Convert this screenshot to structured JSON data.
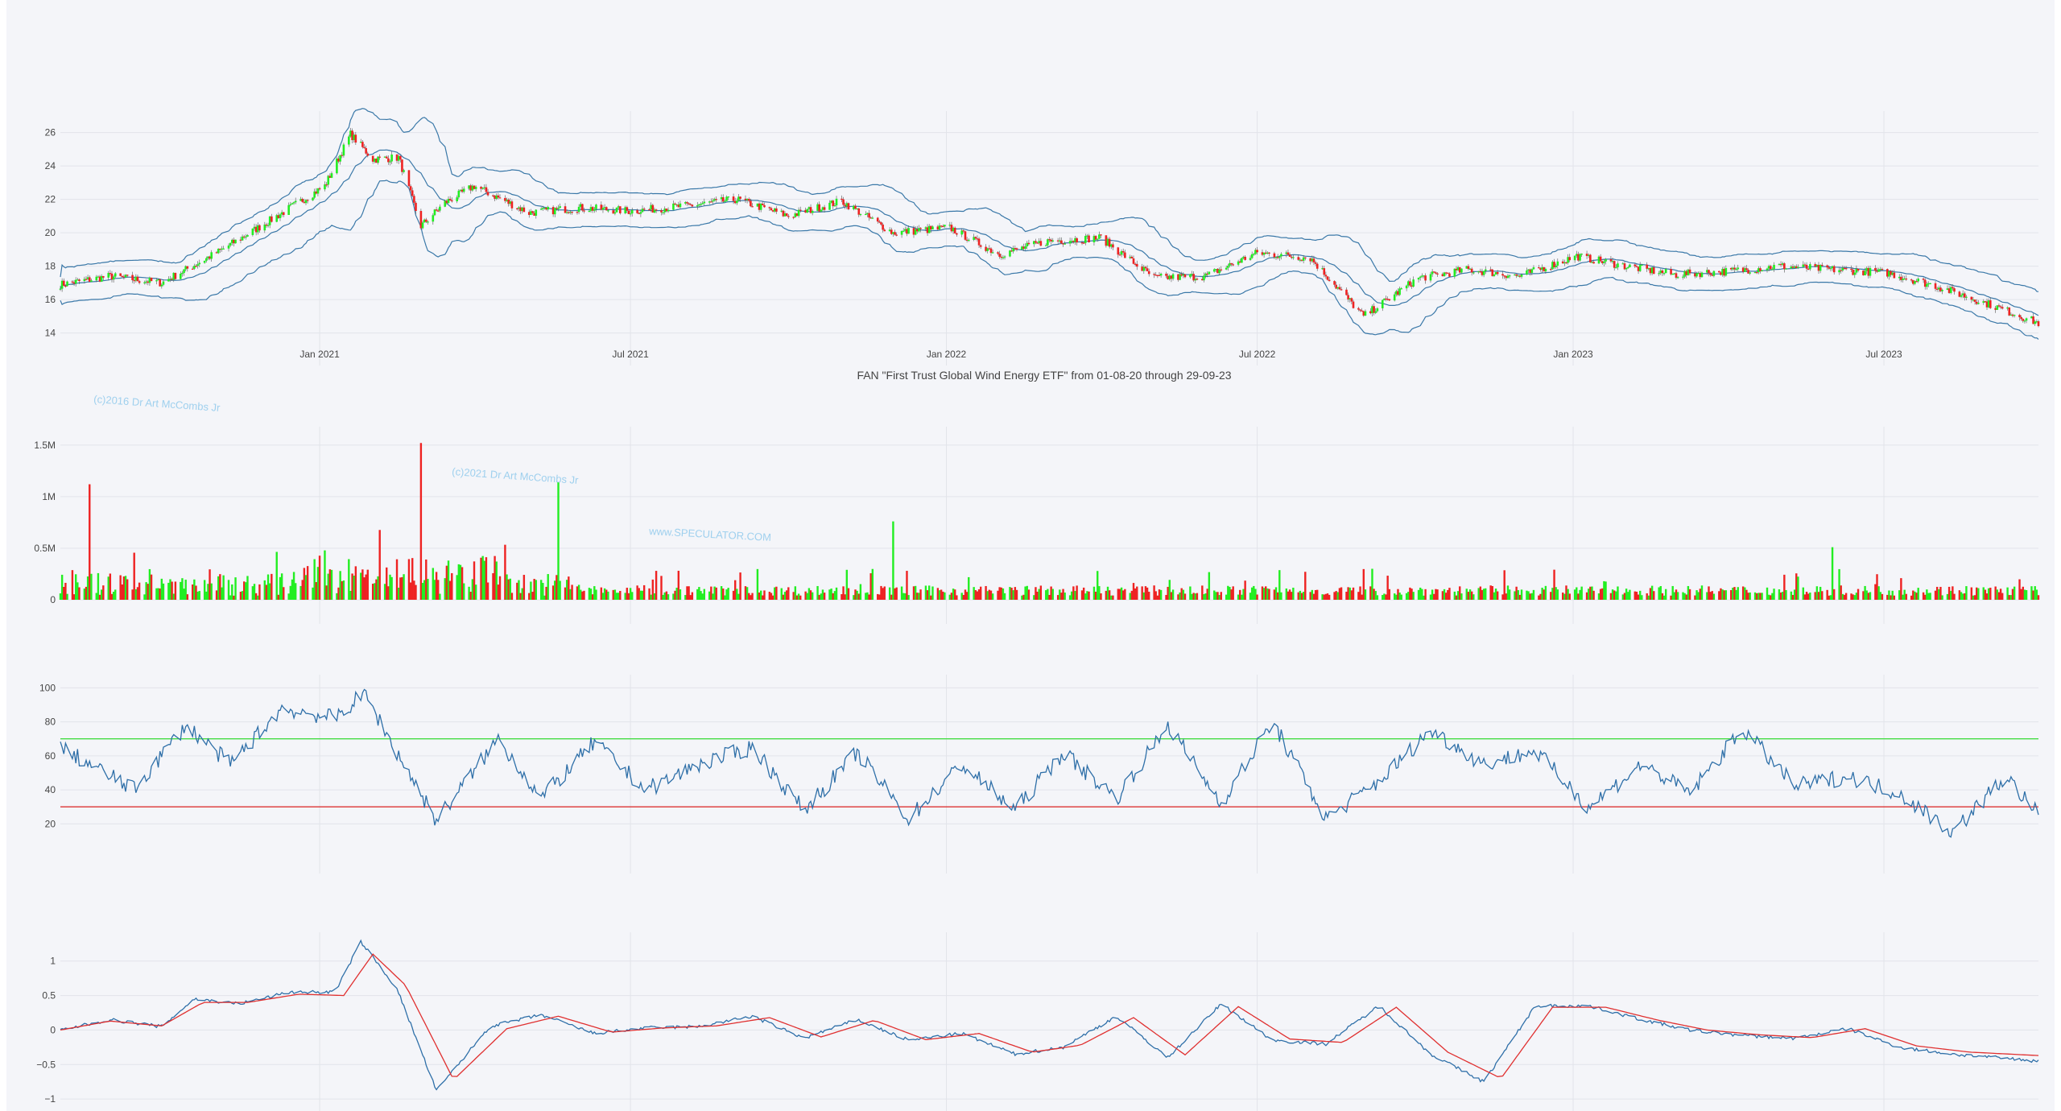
{
  "chart_title": "FAN \"First Trust Global Wind Energy ETF\" from 01-08-20 through 29-09-23",
  "watermarks": [
    "(c)2016 Dr Art McCombs Jr",
    "(c)2021 Dr Art McCombs Jr",
    "www.SPECULATOR.COM"
  ],
  "colors": {
    "up": "#22ee22",
    "down": "#ee2222",
    "band": "#3a78a8",
    "rsi": "#2e6fa8",
    "signal": "#e03030",
    "overbought": "#44dd44",
    "oversold": "#dd3333",
    "grid": "#e2e4ea",
    "background": "#f4f5f9"
  },
  "chart_data": [
    {
      "type": "candlestick",
      "name": "price",
      "x_tick_labels": [
        "Jan 2021",
        "Jul 2021",
        "Jan 2022",
        "Jul 2022",
        "Jan 2023",
        "Jul 2023"
      ],
      "y_ticks": [
        14,
        16,
        18,
        20,
        22,
        24,
        26
      ],
      "ylim": [
        13.5,
        26.8
      ],
      "overlays": [
        "bollinger upper",
        "bollinger middle",
        "bollinger lower"
      ],
      "series": [
        {
          "name": "close",
          "x": [
            "2020-08-03",
            "2020-09-01",
            "2020-10-01",
            "2020-11-02",
            "2020-12-01",
            "2021-01-04",
            "2021-01-19",
            "2021-02-01",
            "2021-02-16",
            "2021-03-01",
            "2021-03-15",
            "2021-04-01",
            "2021-05-03",
            "2021-06-01",
            "2021-07-01",
            "2021-08-02",
            "2021-09-01",
            "2021-10-01",
            "2021-11-01",
            "2021-12-01",
            "2022-01-03",
            "2022-02-01",
            "2022-03-01",
            "2022-04-01",
            "2022-05-02",
            "2022-06-01",
            "2022-07-01",
            "2022-08-01",
            "2022-09-01",
            "2022-10-03",
            "2022-11-01",
            "2022-12-01",
            "2023-01-03",
            "2023-02-01",
            "2023-03-01",
            "2023-04-03",
            "2023-05-01",
            "2023-06-01",
            "2023-07-03",
            "2023-08-01",
            "2023-09-01",
            "2023-09-29"
          ],
          "values": [
            16.9,
            17.4,
            17.0,
            18.8,
            20.6,
            22.8,
            25.9,
            24.4,
            24.5,
            20.4,
            21.8,
            22.8,
            21.2,
            21.5,
            21.3,
            21.6,
            22.0,
            21.0,
            21.9,
            20.0,
            20.3,
            18.7,
            19.5,
            19.7,
            17.3,
            17.4,
            18.8,
            18.5,
            15.0,
            17.3,
            17.8,
            17.4,
            18.6,
            18.0,
            17.5,
            17.7,
            18.0,
            17.8,
            17.6,
            16.8,
            15.7,
            14.6
          ]
        }
      ]
    },
    {
      "type": "bar",
      "name": "volume",
      "y_ticks": [
        "0",
        "0.5M",
        "1M",
        "1.5M"
      ],
      "ylim": [
        0,
        1600000
      ],
      "spikes": [
        {
          "date": "2020-08-20",
          "value": 1120000
        },
        {
          "date": "2021-03-01",
          "value": 1520000
        },
        {
          "date": "2021-05-20",
          "value": 1140000
        },
        {
          "date": "2021-12-01",
          "value": 760000
        },
        {
          "date": "2023-06-01",
          "value": 510000
        }
      ]
    },
    {
      "type": "line",
      "name": "rsi",
      "y_ticks": [
        20,
        40,
        60,
        80,
        100
      ],
      "ylim": [
        5,
        103
      ],
      "reference_lines": [
        70,
        30
      ],
      "series": [
        {
          "name": "rsi",
          "x": [
            "2020-08-03",
            "2020-09-15",
            "2020-10-15",
            "2020-11-10",
            "2020-12-10",
            "2021-01-10",
            "2021-01-27",
            "2021-02-15",
            "2021-03-10",
            "2021-04-15",
            "2021-05-10",
            "2021-06-10",
            "2021-07-10",
            "2021-08-10",
            "2021-09-10",
            "2021-10-10",
            "2021-11-10",
            "2021-12-10",
            "2022-01-10",
            "2022-02-10",
            "2022-03-10",
            "2022-04-10",
            "2022-05-10",
            "2022-06-10",
            "2022-07-10",
            "2022-08-10",
            "2022-09-10",
            "2022-10-10",
            "2022-11-10",
            "2022-12-10",
            "2023-01-10",
            "2023-02-10",
            "2023-03-10",
            "2023-04-10",
            "2023-05-10",
            "2023-06-10",
            "2023-07-10",
            "2023-08-10",
            "2023-09-10",
            "2023-09-29"
          ],
          "values": [
            65,
            40,
            78,
            55,
            88,
            82,
            97,
            62,
            22,
            70,
            35,
            68,
            40,
            55,
            65,
            28,
            62,
            23,
            55,
            28,
            62,
            35,
            78,
            32,
            80,
            23,
            45,
            75,
            55,
            63,
            30,
            55,
            38,
            76,
            42,
            48,
            38,
            15,
            48,
            25
          ]
        }
      ]
    },
    {
      "type": "line",
      "name": "oscillator",
      "y_ticks": [
        "−1",
        "−0.5",
        "0",
        "0.5",
        "1"
      ],
      "ylim": [
        -1.08,
        1.3
      ],
      "series": [
        {
          "name": "line",
          "x": [
            "2020-08-03",
            "2020-09-01",
            "2020-10-01",
            "2020-10-20",
            "2020-11-15",
            "2020-12-15",
            "2021-01-10",
            "2021-01-25",
            "2021-02-15",
            "2021-03-10",
            "2021-04-10",
            "2021-05-10",
            "2021-06-10",
            "2021-07-10",
            "2021-08-10",
            "2021-09-10",
            "2021-10-10",
            "2021-11-10",
            "2021-12-10",
            "2022-01-10",
            "2022-02-10",
            "2022-03-10",
            "2022-04-10",
            "2022-05-10",
            "2022-06-10",
            "2022-07-10",
            "2022-08-10",
            "2022-09-10",
            "2022-10-10",
            "2022-11-10",
            "2022-12-10",
            "2023-01-10",
            "2023-02-10",
            "2023-03-10",
            "2023-04-10",
            "2023-05-10",
            "2023-06-10",
            "2023-07-10",
            "2023-08-10",
            "2023-09-29"
          ],
          "values": [
            0.0,
            0.15,
            0.05,
            0.45,
            0.38,
            0.55,
            0.55,
            1.28,
            0.6,
            -0.88,
            0.05,
            0.22,
            -0.05,
            0.03,
            0.05,
            0.2,
            -0.12,
            0.15,
            -0.15,
            -0.05,
            -0.35,
            -0.25,
            0.2,
            -0.4,
            0.38,
            -0.15,
            -0.2,
            0.35,
            -0.35,
            -0.75,
            0.35,
            0.35,
            0.15,
            0.0,
            -0.08,
            -0.12,
            0.02,
            -0.25,
            -0.35,
            -0.45
          ]
        },
        {
          "name": "signal",
          "x": [
            "2020-08-03",
            "2020-09-01",
            "2020-10-01",
            "2020-10-25",
            "2020-11-20",
            "2020-12-20",
            "2021-01-15",
            "2021-02-01",
            "2021-02-20",
            "2021-03-20",
            "2021-04-20",
            "2021-05-20",
            "2021-06-20",
            "2021-07-20",
            "2021-08-20",
            "2021-09-20",
            "2021-10-20",
            "2021-11-20",
            "2021-12-20",
            "2022-01-20",
            "2022-02-20",
            "2022-03-20",
            "2022-04-20",
            "2022-05-20",
            "2022-06-20",
            "2022-07-20",
            "2022-08-20",
            "2022-09-20",
            "2022-10-20",
            "2022-11-20",
            "2022-12-20",
            "2023-01-20",
            "2023-02-20",
            "2023-03-20",
            "2023-04-20",
            "2023-05-20",
            "2023-06-20",
            "2023-07-20",
            "2023-08-20",
            "2023-09-29"
          ],
          "values": [
            0.0,
            0.13,
            0.06,
            0.4,
            0.4,
            0.52,
            0.5,
            1.1,
            0.65,
            -0.72,
            0.02,
            0.2,
            -0.03,
            0.03,
            0.06,
            0.18,
            -0.1,
            0.14,
            -0.14,
            -0.05,
            -0.32,
            -0.22,
            0.18,
            -0.36,
            0.34,
            -0.13,
            -0.18,
            0.33,
            -0.32,
            -0.7,
            0.33,
            0.33,
            0.14,
            0.0,
            -0.07,
            -0.11,
            0.02,
            -0.23,
            -0.32,
            -0.37
          ]
        }
      ]
    }
  ]
}
